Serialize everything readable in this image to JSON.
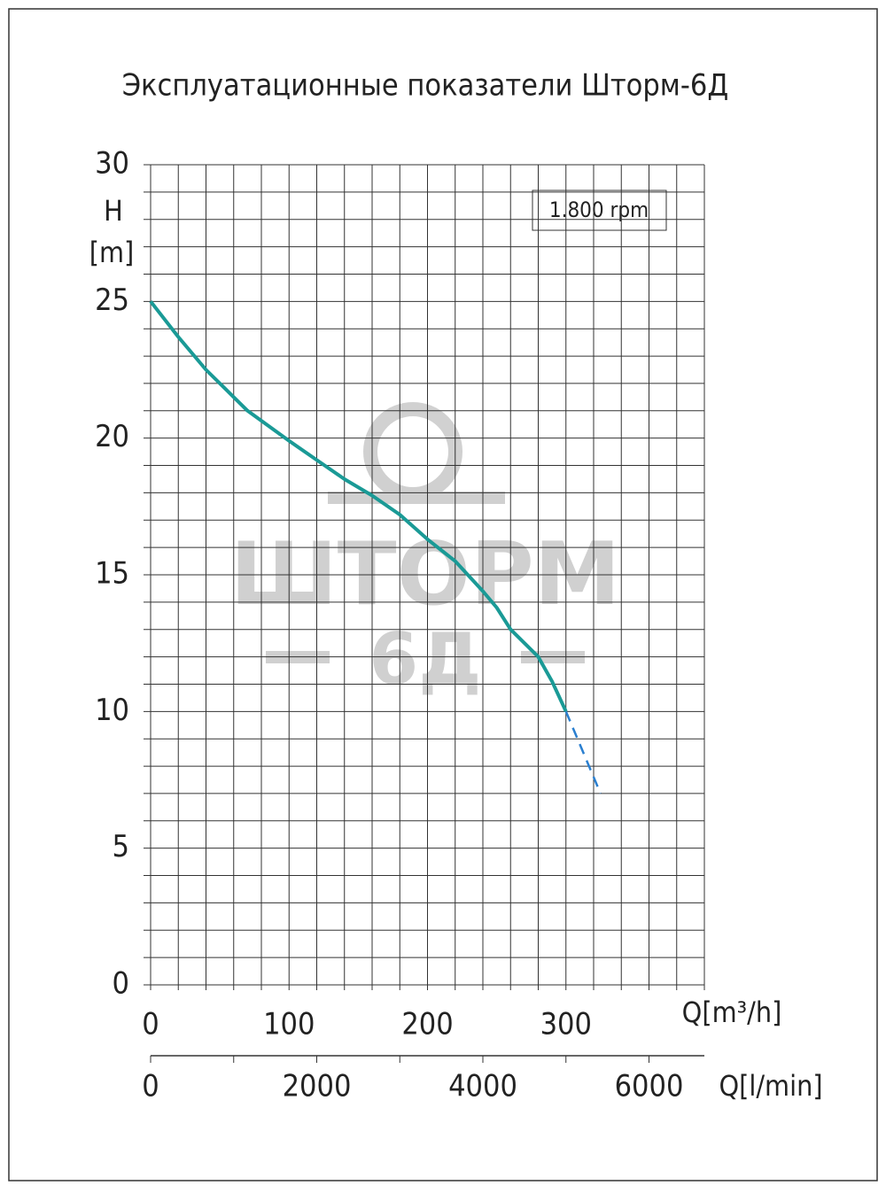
{
  "chart_data": {
    "type": "line",
    "title": "Эксплуатационные показатели Шторм-6Д",
    "ylabel": "H",
    "yunit": "[m]",
    "xlabel": "Q[m³/h]",
    "x2label": "Q[l/min]",
    "annotation": "1.800 rpm",
    "watermark": [
      "ШТОРМ",
      "6Д"
    ],
    "xlim": [
      0,
      400
    ],
    "ylim": [
      0,
      30
    ],
    "x2lim": [
      0,
      6666.7
    ],
    "xticks": [
      0,
      100,
      200,
      300
    ],
    "yticks": [
      0,
      5,
      10,
      15,
      20,
      25,
      30
    ],
    "x2ticks": [
      0,
      2000,
      4000,
      6000
    ],
    "x2minorticks": [
      1000,
      3000,
      5000
    ],
    "xgrid": [
      0,
      20,
      40,
      60,
      80,
      100,
      120,
      140,
      160,
      180,
      200,
      220,
      240,
      260,
      280,
      300,
      320,
      340,
      360,
      380,
      400
    ],
    "ygrid": [
      0,
      1,
      2,
      3,
      4,
      5,
      6,
      7,
      8,
      9,
      10,
      11,
      12,
      13,
      14,
      15,
      16,
      17,
      18,
      19,
      20,
      21,
      22,
      23,
      24,
      25,
      26,
      27,
      28,
      29,
      30
    ],
    "grid": true,
    "series": [
      {
        "color": "#1a9a96",
        "dashed": false,
        "x": [
          0,
          20,
          40,
          60,
          70,
          100,
          120,
          140,
          160,
          180,
          200,
          220,
          240,
          250,
          260,
          280,
          290,
          300
        ],
        "values": [
          25,
          23.7,
          22.5,
          21.5,
          21,
          19.9,
          19.2,
          18.5,
          17.9,
          17.2,
          16.3,
          15.5,
          14.4,
          13.8,
          13,
          12,
          11.1,
          10
        ]
      },
      {
        "color": "#2a7fd0",
        "dashed": true,
        "x": [
          300,
          325
        ],
        "values": [
          10,
          7
        ]
      }
    ]
  }
}
